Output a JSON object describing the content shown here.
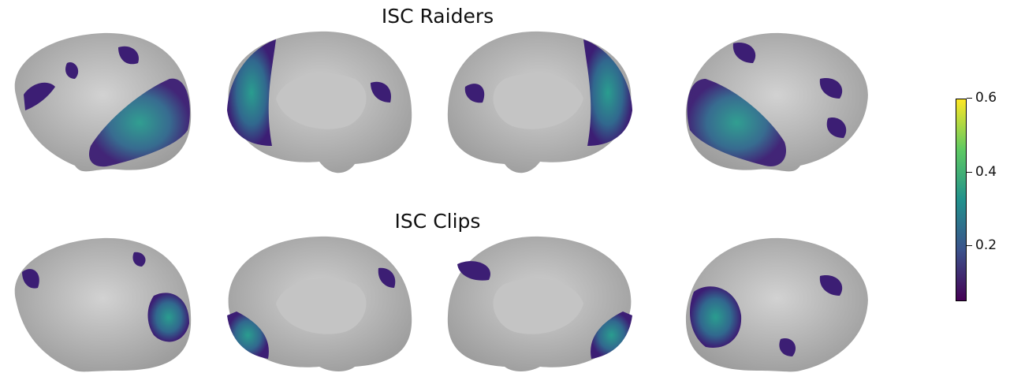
{
  "titles": {
    "top": "ISC Raiders",
    "bottom": "ISC Clips"
  },
  "colorbar": {
    "colormap": "viridis",
    "ticks": [
      "0.2",
      "0.4",
      "0.6"
    ],
    "colors": [
      "#440154",
      "#3b528b",
      "#21918c",
      "#5ec962",
      "#fde725"
    ]
  },
  "views": [
    "left-lateral",
    "left-medial",
    "right-medial",
    "right-lateral"
  ],
  "surface_colors": {
    "cortex": "#a9a9a9",
    "overlay_low": "#3c1e74",
    "overlay_high": "#2a9d8f"
  }
}
